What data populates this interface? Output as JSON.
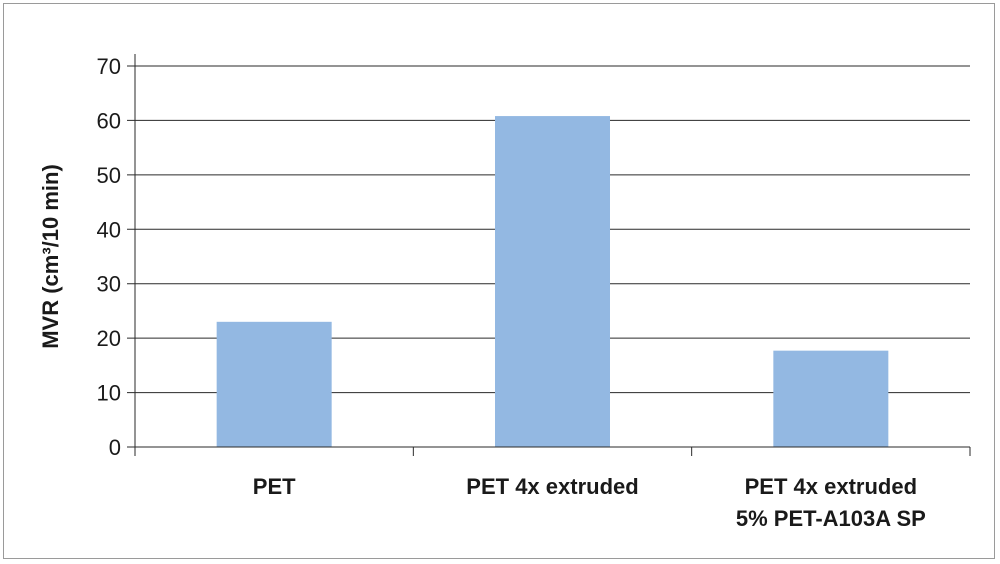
{
  "chart_data": {
    "type": "bar",
    "title": "",
    "xlabel": "",
    "ylabel": "MVR (cm³/10 min)",
    "categories": [
      [
        "PET"
      ],
      [
        "PET 4x extruded"
      ],
      [
        "PET 4x extruded",
        "5% PET-A103A SP"
      ]
    ],
    "values": [
      23,
      60.8,
      17.7
    ],
    "ylim": [
      0,
      70
    ],
    "yticks": [
      0,
      10,
      20,
      30,
      40,
      50,
      60,
      70
    ],
    "grid": true,
    "legend": "none",
    "bar_color": "#93b8e2",
    "grid_color": "#2a2a2a"
  }
}
